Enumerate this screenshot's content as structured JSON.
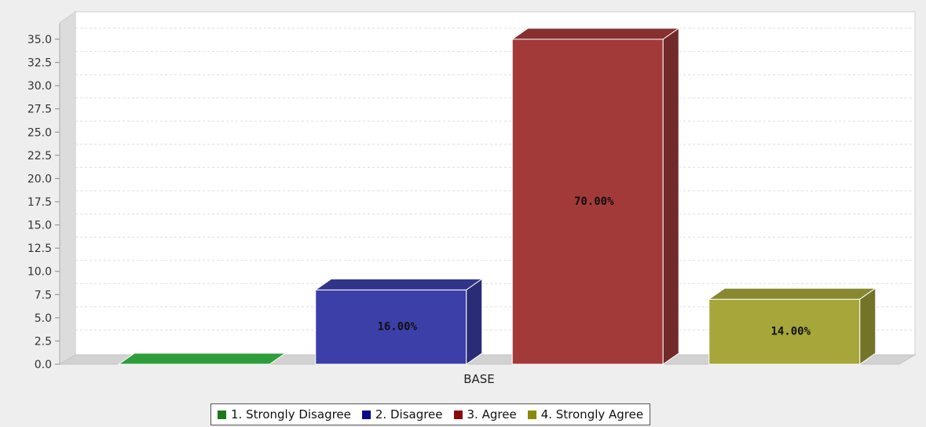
{
  "chart_data": {
    "type": "bar",
    "title": "",
    "xlabel": "",
    "ylabel": "",
    "categories": [
      "BASE"
    ],
    "ylim": [
      0,
      35
    ],
    "y_ticks": [
      "0.0",
      "2.5",
      "5.0",
      "7.5",
      "10.0",
      "12.5",
      "15.0",
      "17.5",
      "20.0",
      "22.5",
      "25.0",
      "27.5",
      "30.0",
      "32.5",
      "35.0"
    ],
    "grid": true,
    "style": "3d",
    "legend_position": "bottom",
    "series": [
      {
        "name": "1. Strongly Disagree",
        "values": [
          0
        ],
        "label": "",
        "color": "#2e9e3a"
      },
      {
        "name": "2. Disagree",
        "values": [
          8
        ],
        "label": "16.00%",
        "color": "#3d3fa8"
      },
      {
        "name": "3. Agree",
        "values": [
          35
        ],
        "label": "70.00%",
        "color": "#a33a3a"
      },
      {
        "name": "4. Strongly Agree",
        "values": [
          7
        ],
        "label": "14.00%",
        "color": "#a6a63a"
      }
    ]
  },
  "legend_colors": {
    "1. Strongly Disagree": "#1a7a1a",
    "2. Disagree": "#0a0a8a",
    "3. Agree": "#8a0a0a",
    "4. Strongly Agree": "#8a8a0a"
  }
}
